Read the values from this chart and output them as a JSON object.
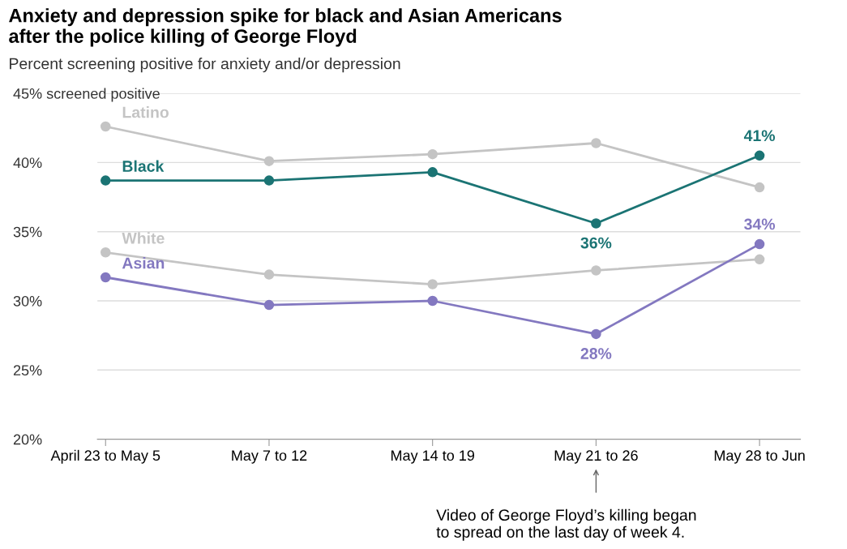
{
  "chart_data": {
    "type": "line",
    "title": "Anxiety and depression spike for black and Asian Americans\nafter the police killing of George Floyd",
    "subtitle": "Percent screening positive for anxiety and/or depression",
    "categories": [
      "April 23 to May 5",
      "May 7 to 12",
      "May 14 to 19",
      "May 21 to 26",
      "May 28 to Jun"
    ],
    "series": [
      {
        "name": "Latino",
        "color": "#c4c4c4",
        "values": [
          42.6,
          40.1,
          40.6,
          41.4,
          38.2
        ]
      },
      {
        "name": "Black",
        "color": "#1b7474",
        "values": [
          38.7,
          38.7,
          39.3,
          35.6,
          40.5
        ],
        "value_labels": [
          null,
          null,
          null,
          "36%",
          "41%"
        ]
      },
      {
        "name": "White",
        "color": "#c4c4c4",
        "values": [
          33.5,
          31.9,
          31.2,
          32.2,
          33.0
        ]
      },
      {
        "name": "Asian",
        "color": "#8378c0",
        "values": [
          31.7,
          29.7,
          30.0,
          27.6,
          34.1
        ],
        "value_labels": [
          null,
          null,
          null,
          "28%",
          "34%"
        ]
      }
    ],
    "ylim": [
      20,
      45
    ],
    "yticks": [
      {
        "value": 20,
        "label": "20%"
      },
      {
        "value": 25,
        "label": "25%"
      },
      {
        "value": 30,
        "label": "30%"
      },
      {
        "value": 35,
        "label": "35%"
      },
      {
        "value": 40,
        "label": "40%"
      },
      {
        "value": 45,
        "label": "45% screened positive"
      }
    ],
    "grid": "y",
    "marker": "circle",
    "annotations": [
      "Video of George Floyd’s killing began\nto spread on the last day of week 4."
    ]
  }
}
